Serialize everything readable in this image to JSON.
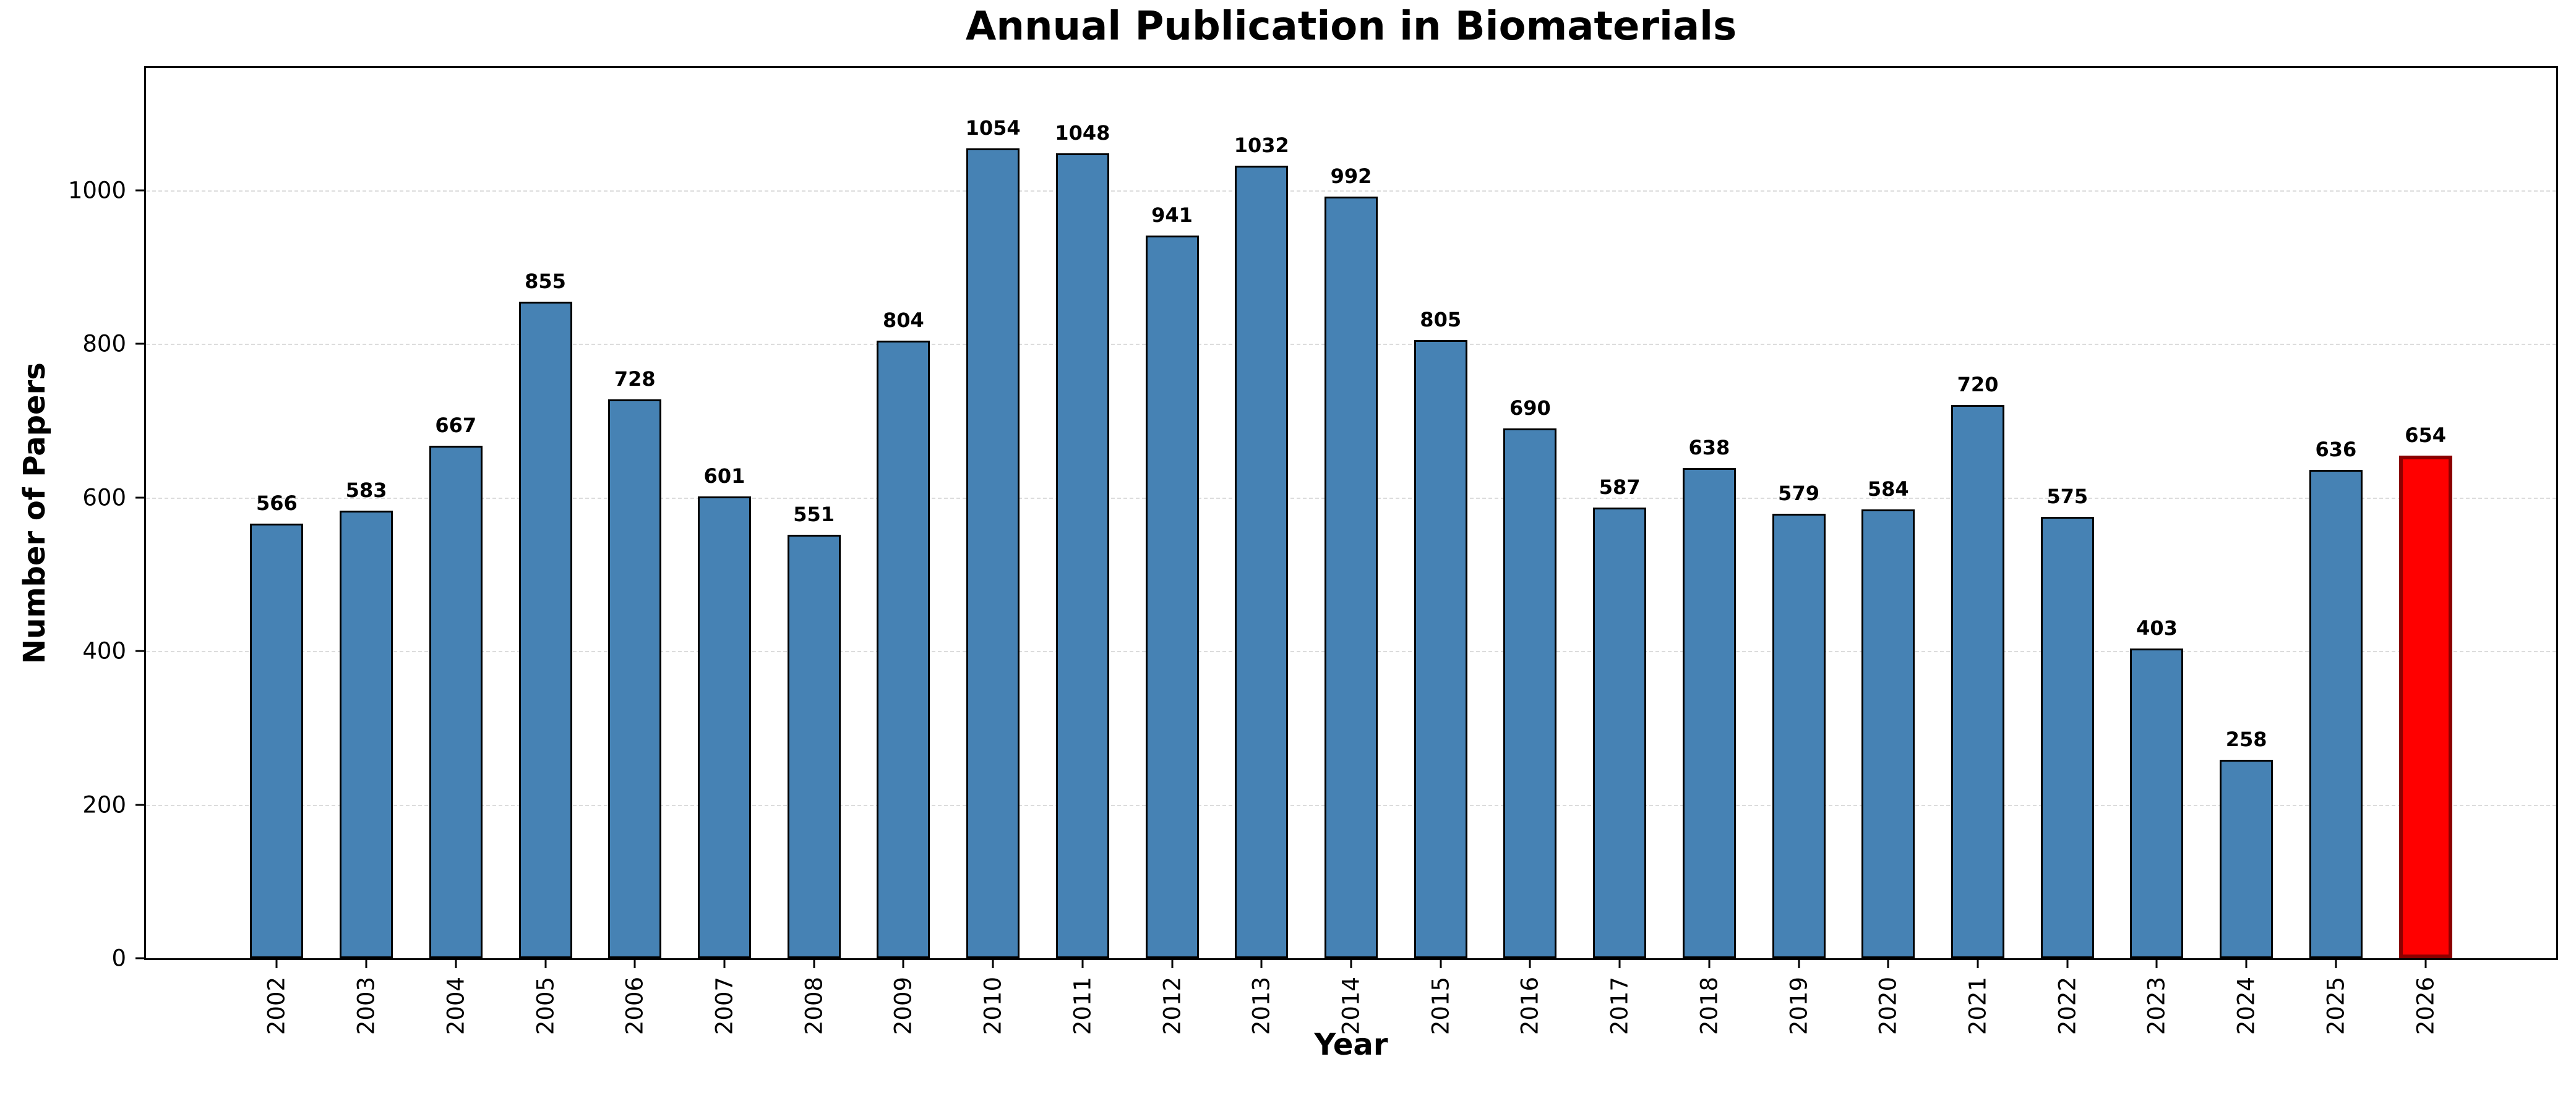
{
  "chart_data": {
    "type": "bar",
    "title": "Annual Publication in Biomaterials",
    "xlabel": "Year",
    "ylabel": "Number of Papers",
    "categories": [
      "2002",
      "2003",
      "2004",
      "2005",
      "2006",
      "2007",
      "2008",
      "2009",
      "2010",
      "2011",
      "2012",
      "2013",
      "2014",
      "2015",
      "2016",
      "2017",
      "2018",
      "2019",
      "2020",
      "2021",
      "2022",
      "2023",
      "2024",
      "2025",
      "2026"
    ],
    "values": [
      566,
      583,
      667,
      855,
      728,
      601,
      551,
      804,
      1054,
      1048,
      941,
      1032,
      992,
      805,
      690,
      587,
      638,
      579,
      584,
      720,
      575,
      403,
      258,
      636,
      654
    ],
    "ylim": [
      0,
      1159
    ],
    "yticks": [
      0,
      200,
      400,
      600,
      800,
      1000
    ],
    "grid": "y-axis dashed",
    "legend": "none",
    "colors": {
      "bar_fill": "#4682B4",
      "bar_edge": "#000000",
      "highlight_fill": "#FF0000",
      "highlight_edge": "#8B0000",
      "gridline": "#DCDCDC",
      "axis": "#000000",
      "background": "#FFFFFF"
    },
    "highlight_index": 24
  }
}
